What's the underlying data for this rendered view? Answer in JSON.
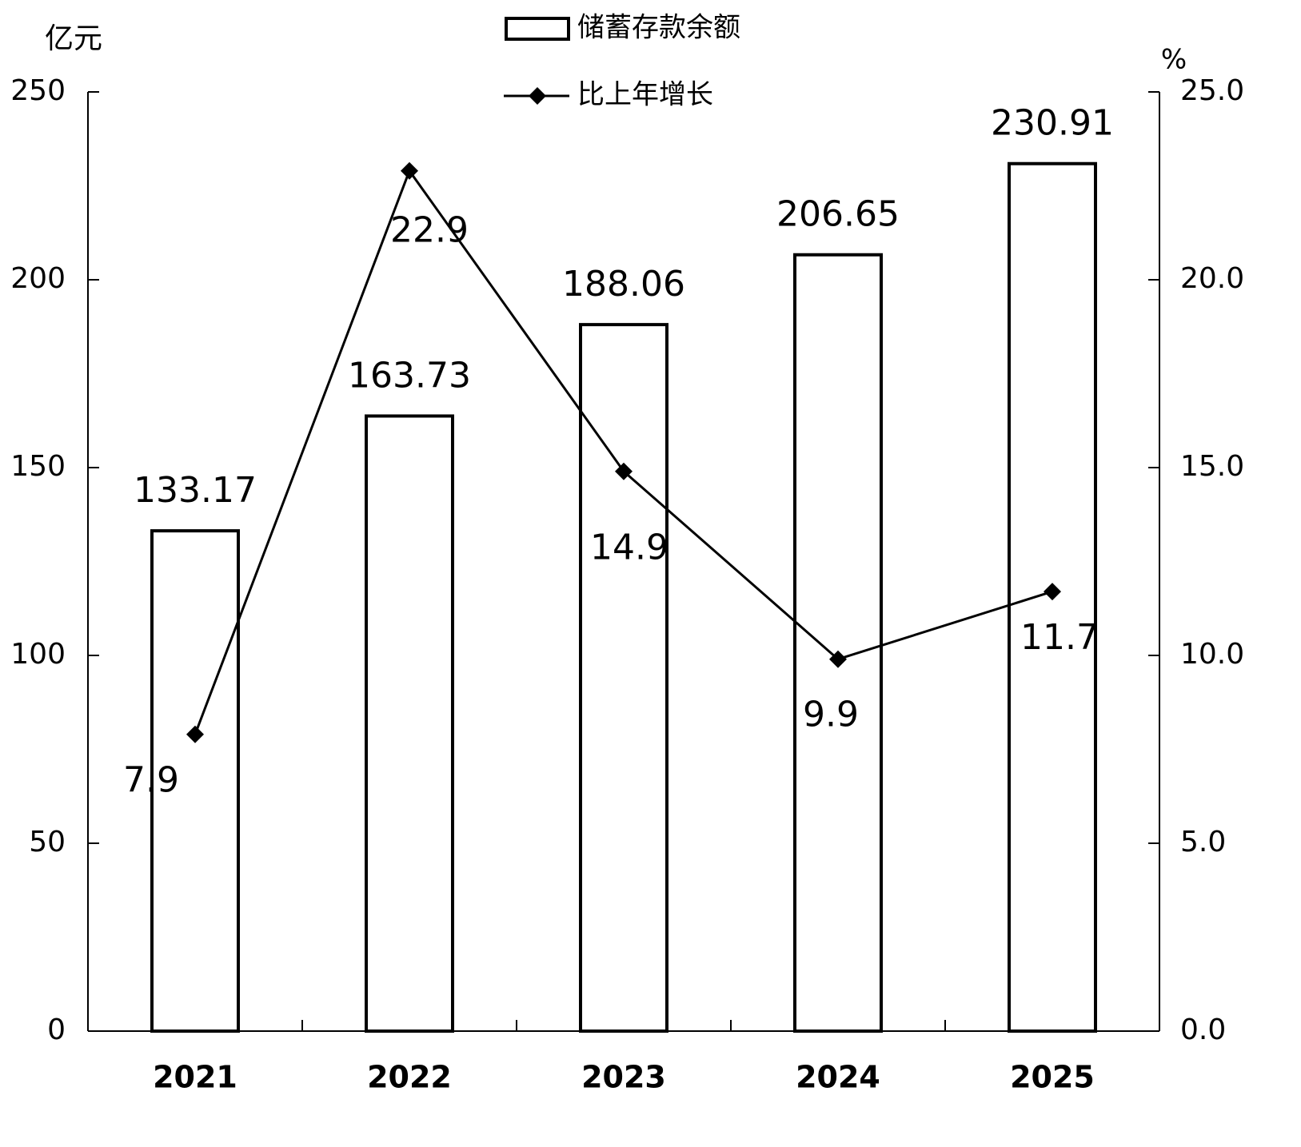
{
  "chart_data": {
    "type": "bar_line",
    "y_axis_label": "亿元",
    "y2_axis_label": "%",
    "categories": [
      "2021",
      "2022",
      "2023",
      "2024",
      "2025"
    ],
    "series": [
      {
        "name": "储蓄存款余额",
        "type": "bar",
        "color": "#ffffff",
        "values": [
          133.17,
          163.73,
          188.06,
          206.65,
          230.91
        ]
      },
      {
        "name": "比上年增长",
        "type": "line",
        "axis": "y2",
        "color": "#000000",
        "values": [
          7.9,
          22.9,
          14.9,
          9.9,
          11.7
        ]
      }
    ],
    "ylim": [
      0,
      250
    ],
    "yticks": [
      0,
      50,
      100,
      150,
      200,
      250
    ],
    "y2lim": [
      0,
      25
    ],
    "y2ticks": [
      {
        "value": 0,
        "label": "0.0"
      },
      {
        "value": 5,
        "label": "5.0"
      },
      {
        "value": 10,
        "label": "10.0"
      },
      {
        "value": 15,
        "label": "15.0"
      },
      {
        "value": 20,
        "label": "20.0"
      },
      {
        "value": 25,
        "label": "25.0"
      }
    ],
    "grid": false,
    "legend": "top"
  }
}
